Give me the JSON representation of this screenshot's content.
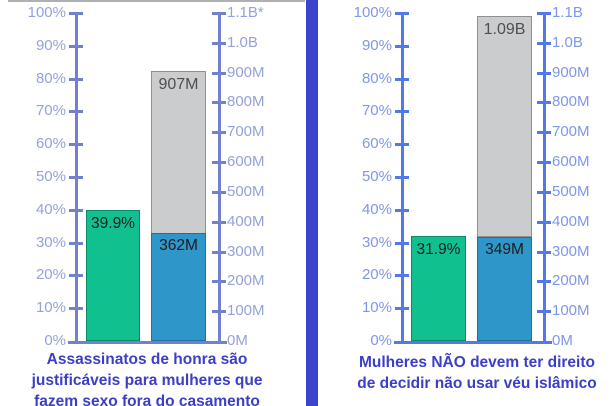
{
  "figure": {
    "background": "#ffffff",
    "divider_color": "#3c44cf",
    "crop_line_color": "#8f8f8f"
  },
  "chart_data": [
    {
      "type": "bar",
      "title": "Assassinatos de honra são justificáveis para mulheres que fazem sexo fora do casamento",
      "caption_lines": [
        "Assassinatos de honra são",
        "justificáveis para mulheres que",
        "fazem sexo fora do casamento"
      ],
      "caption_color": "#3b3fc8",
      "axis_line_color": "#7181cf",
      "axis_text_color": "#94a1dd",
      "grid": false,
      "legend": "none",
      "left_axis": {
        "unit": "percent",
        "min": 0,
        "max": 100,
        "step": 10,
        "tick_labels_bottom_to_top": [
          "0%",
          "10%",
          "20%",
          "30%",
          "40%",
          "50%",
          "60%",
          "70%",
          "80%",
          "90%",
          "100%"
        ]
      },
      "right_axis": {
        "unit": "people-millions",
        "min": 0,
        "max": 1100,
        "step": 100,
        "tick_labels_bottom_to_top": [
          "0M",
          "100M",
          "200M",
          "300M",
          "400M",
          "500M",
          "600M",
          "700M",
          "800M",
          "900M",
          "1.0B",
          "1.1B*"
        ]
      },
      "series": [
        {
          "name": "share-agreeing",
          "axis": "left",
          "value_percent": 39.9,
          "label": "39.9%",
          "color": "#10c08e",
          "border_color": "#0c8a66",
          "label_color": "#1d1d1d"
        },
        {
          "name": "people-agreeing",
          "axis": "right",
          "value_millions": 362,
          "label": "362M",
          "color": "#2e96c8",
          "border_color": "#20719a",
          "label_color": "#1d1d1d"
        },
        {
          "name": "people-remainder-stack-top",
          "axis": "right",
          "stack_top_millions": 907,
          "label": "907M",
          "color": "#cbcccd",
          "border_color": "#8f9092",
          "label_color": "#4f4f4f"
        }
      ]
    },
    {
      "type": "bar",
      "title": "Mulheres NÃO devem ter direito de decidir não usar véu islâmico",
      "caption_lines": [
        "Mulheres NÃO devem ter direito",
        "de decidir não usar véu islâmico"
      ],
      "caption_color": "#3b3fc8",
      "axis_line_color": "#5379e8",
      "axis_text_color": "#7f97e8",
      "grid": false,
      "legend": "none",
      "left_axis": {
        "unit": "percent",
        "min": 0,
        "max": 100,
        "step": 10,
        "tick_labels_bottom_to_top": [
          "0%",
          "10%",
          "20%",
          "30%",
          "40%",
          "50%",
          "60%",
          "70%",
          "80%",
          "90%",
          "100%"
        ]
      },
      "right_axis": {
        "unit": "people-millions",
        "min": 0,
        "max": 1100,
        "step": 100,
        "tick_labels_bottom_to_top": [
          "0M",
          "100M",
          "200M",
          "300M",
          "400M",
          "500M",
          "600M",
          "700M",
          "800M",
          "900M",
          "1.0B",
          "1.1B"
        ]
      },
      "series": [
        {
          "name": "share-agreeing",
          "axis": "left",
          "value_percent": 31.9,
          "label": "31.9%",
          "color": "#10c08e",
          "border_color": "#0c8a66",
          "label_color": "#1d1d1d"
        },
        {
          "name": "people-agreeing",
          "axis": "right",
          "value_millions": 349,
          "label": "349M",
          "color": "#2e96c8",
          "border_color": "#20719a",
          "label_color": "#1d1d1d"
        },
        {
          "name": "people-remainder-stack-top",
          "axis": "right",
          "stack_top_millions": 1090,
          "label": "1.09B",
          "color": "#cbcccd",
          "border_color": "#8f9092",
          "label_color": "#4f4f4f"
        }
      ]
    }
  ]
}
